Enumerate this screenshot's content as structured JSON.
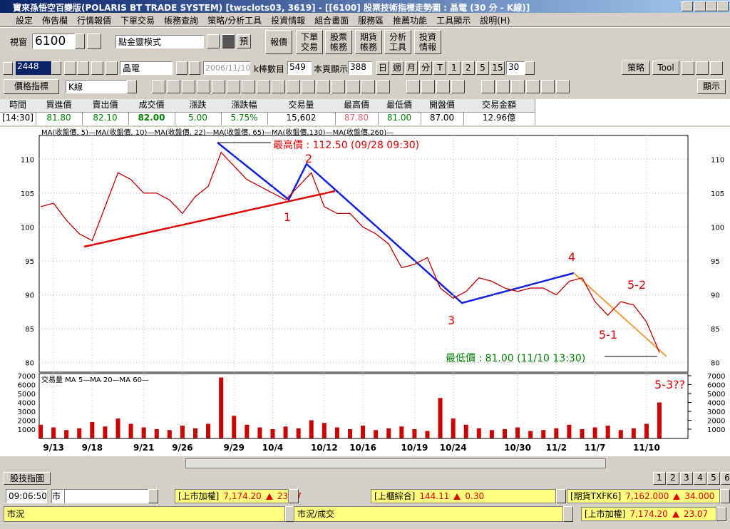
{
  "window": {
    "title": "寶來孫悟空百變版(POLARIS BT TRADE SYSTEM)  [twsclots03, 3619] - [[6100] 股票技術指標走勢圖 : 晶電 (30 分 - K線)]"
  },
  "menu": [
    "設定",
    "佈告欄",
    "行情報價",
    "下單交易",
    "帳務查詢",
    "策略/分析工具",
    "投資情報",
    "組合畫面",
    "服務區",
    "推薦功能",
    "工具顯示",
    "說明(H)"
  ],
  "toolbar": {
    "window_label": "視窗",
    "window_code": "6100",
    "mode": "點金靈模式",
    "preset": "預",
    "buttons": [
      [
        "報價"
      ],
      [
        "下單",
        "交易"
      ],
      [
        "股票",
        "帳務"
      ],
      [
        "期貨",
        "帳務"
      ],
      [
        "分析",
        "工具"
      ],
      [
        "投資",
        "情報"
      ]
    ]
  },
  "toolbar2": {
    "stock_code": "2448",
    "stock_name": "晶電",
    "date": "2006/11/10",
    "bar_count_label": "k棒數目",
    "bar_count": "549",
    "page_show_label": "本頁顯示",
    "page_show": "388",
    "periods": [
      "日",
      "週",
      "月",
      "分",
      "T",
      "1",
      "2",
      "5",
      "15"
    ],
    "period_value": "30",
    "strategy": "策略",
    "tool": "Tool"
  },
  "toolbar3": {
    "indicator": "價格指標",
    "chart_kind": "K線",
    "display": "顯示"
  },
  "quote": {
    "headers": [
      "時間",
      "買進價",
      "賣出價",
      "成交價",
      "漲跌",
      "漲跌幅",
      "交易量",
      "最高價",
      "最低價",
      "開盤價",
      "交易金額"
    ],
    "values": [
      "[14:30]",
      "81.80",
      "82.10",
      "82.00",
      "5.00",
      "5.75%",
      "15,602",
      "87.80",
      "81.00",
      "87.00",
      "12.96億"
    ]
  },
  "chart_data": [
    {
      "type": "line",
      "legend": "MA(收盤價, 5)—MA(收盤價, 10)—MA(收盤價, 22)—MA(收盤價, 65)—MA(收盤價,130)—MA(收盤價,260)—",
      "color": "#c00000",
      "values": [
        103,
        103.5,
        101,
        99,
        98,
        103,
        108,
        107,
        105,
        105,
        104,
        102,
        104.5,
        106,
        111,
        109,
        107,
        106,
        105,
        104,
        106,
        108,
        103,
        102,
        102,
        100,
        99,
        97.5,
        94,
        94.5,
        95.5,
        91,
        89.5,
        90.5,
        92.5,
        92,
        91,
        90.5,
        91,
        91,
        90,
        92,
        92.5,
        89,
        87,
        89,
        88.5,
        86,
        81.5
      ],
      "ylim": [
        78.6,
        113.5
      ],
      "yticks": [
        80,
        85,
        90,
        95,
        100,
        105,
        110
      ],
      "grid": true,
      "annotations": [
        "最高價 : 112.50 (09/28 09:30)",
        "最低價 : 81.00 (11/10 13:30)",
        "1",
        "2",
        "3",
        "4",
        "5-1",
        "5-2",
        "5-3??"
      ]
    },
    {
      "type": "bar",
      "legend": "交易量 MA  5—MA 20—MA 60—",
      "color": "#cc0000",
      "categories": [
        null,
        "9/13",
        null,
        null,
        "9/18",
        null,
        null,
        null,
        "9/21",
        null,
        null,
        "9/26",
        null,
        null,
        null,
        "9/29",
        null,
        null,
        "10/4",
        null,
        null,
        null,
        "10/12",
        null,
        null,
        "10/16",
        null,
        null,
        null,
        "10/19",
        null,
        null,
        "10/24",
        null,
        null,
        null,
        null,
        "10/30",
        null,
        null,
        "11/2",
        null,
        null,
        "11/7",
        null,
        null,
        null,
        "11/10",
        null
      ],
      "values": [
        1500,
        1200,
        900,
        1100,
        1800,
        1300,
        2200,
        1600,
        1200,
        1000,
        900,
        1400,
        1100,
        1600,
        6800,
        2500,
        1500,
        1200,
        1000,
        1300,
        1100,
        2000,
        1700,
        1200,
        1000,
        1400,
        900,
        1100,
        1300,
        1000,
        800,
        4500,
        2200,
        1500,
        1100,
        900,
        1000,
        1200,
        800,
        900,
        1100,
        1500,
        1000,
        1200,
        1400,
        900,
        1100,
        1600,
        4000
      ],
      "ylim": [
        0,
        7200
      ],
      "yticks": [
        1000,
        2000,
        3000,
        4000,
        5000,
        6000,
        7000
      ]
    }
  ],
  "status": {
    "tab": "股技指圖",
    "time": "09:06:50",
    "market": "市",
    "tickers": [
      {
        "name": "[上市加權]",
        "value": "7,174.20",
        "change": "23.07"
      },
      {
        "name": "[上櫃綜合]",
        "value": "144.11",
        "change": "0.30"
      },
      {
        "name": "[期貨TXFK6]",
        "value": "7,162.000",
        "change": "34.000"
      }
    ],
    "panels": [
      "市況",
      "市況/成交"
    ],
    "panel_ticker": {
      "name": "[上市加權]",
      "value": "7,174.20",
      "change": "23.07"
    },
    "pages": [
      "1",
      "2",
      "3",
      "4",
      "5",
      "6"
    ]
  }
}
